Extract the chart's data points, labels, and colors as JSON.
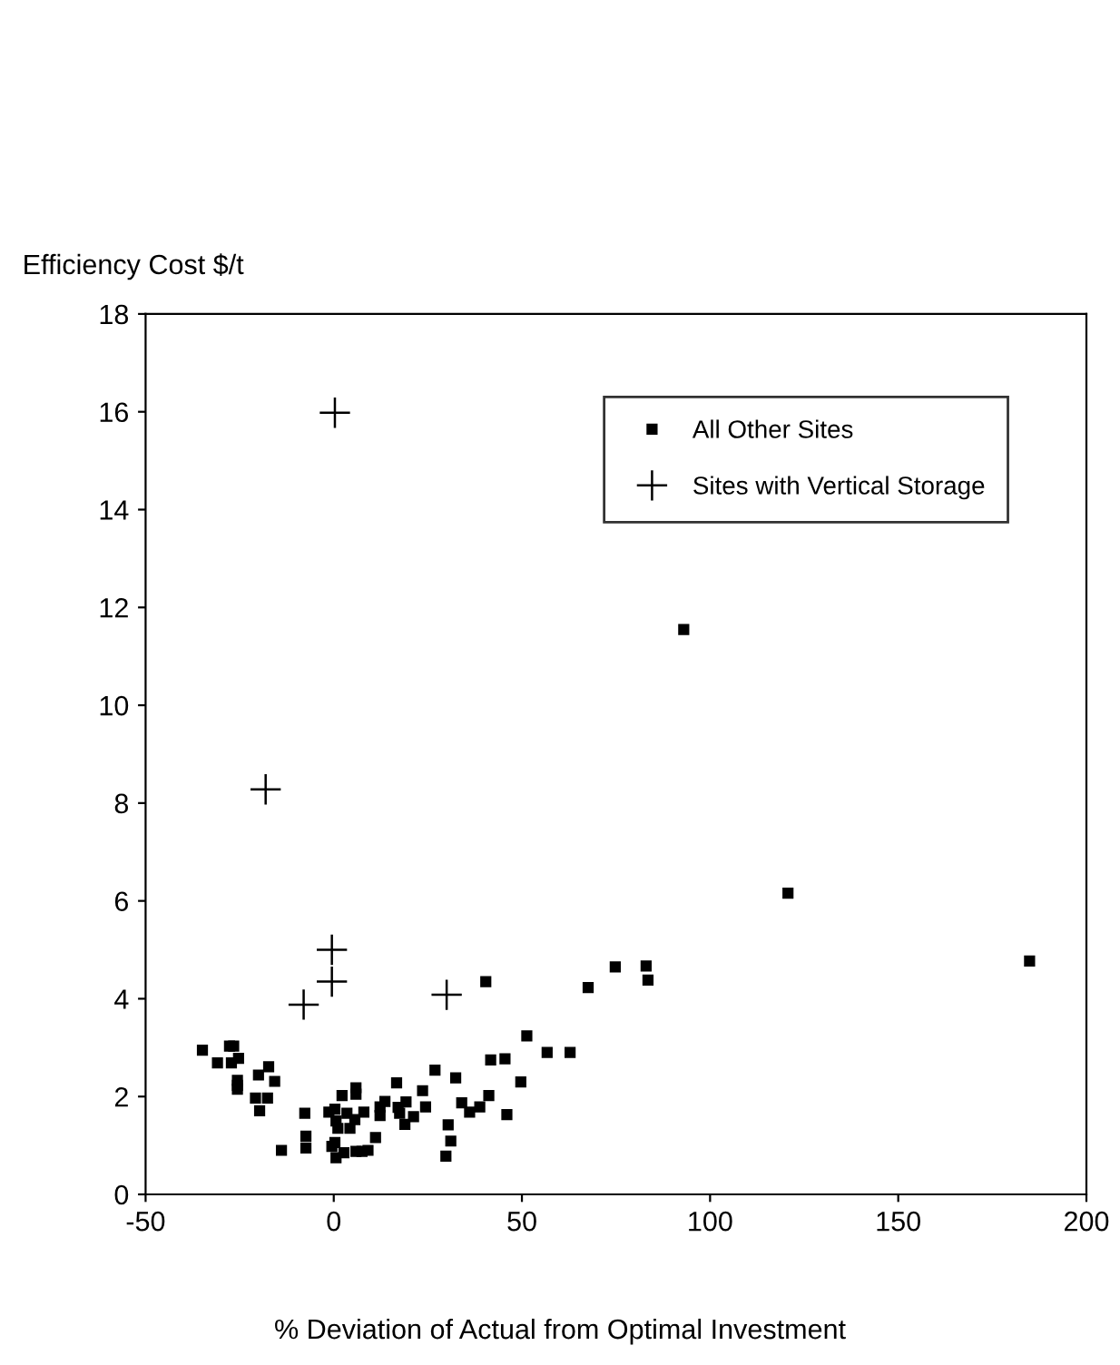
{
  "chart_data": {
    "type": "scatter",
    "xlabel": "% Deviation of Actual from Optimal Investment",
    "ylabel": "Efficiency Cost $/t",
    "xlim": [
      -50,
      200
    ],
    "xticks": [
      -50,
      0,
      50,
      100,
      150,
      200
    ],
    "ylim": [
      0,
      18
    ],
    "yticks": [
      0,
      2,
      4,
      6,
      8,
      10,
      12,
      14,
      16,
      18
    ],
    "grid": false,
    "legend": "top right",
    "series": [
      {
        "name": "All Other Sites",
        "color": "#000000",
        "marker": "square",
        "x": [
          -34.9,
          -30.9,
          -27.7,
          -26.6,
          -27.2,
          -25.3,
          -25.6,
          -25.6,
          -25.6,
          -20.0,
          -17.3,
          -15.7,
          -20.8,
          -17.6,
          -19.7,
          -13.9,
          -7.7,
          -7.4,
          -7.4,
          -1.3,
          0.3,
          0.6,
          1.1,
          2.2,
          3.5,
          4.3,
          5.9,
          5.9,
          5.6,
          8.0,
          -0.5,
          0.3,
          0.6,
          2.7,
          5.9,
          7.5,
          9.1,
          11.1,
          12.3,
          12.3,
          13.6,
          16.7,
          17.1,
          17.5,
          19.2,
          18.9,
          21.2,
          23.6,
          24.4,
          26.9,
          30.4,
          31.1,
          29.8,
          32.4,
          34.0,
          36.1,
          38.8,
          41.2,
          41.7,
          45.5,
          46.0,
          49.7,
          51.3,
          56.7,
          62.8,
          40.4,
          67.6,
          74.8,
          83.0,
          83.5,
          93,
          120.7,
          184.9
        ],
        "values": [
          2.95,
          2.69,
          3.03,
          3.03,
          2.69,
          2.78,
          2.33,
          2.23,
          2.15,
          2.44,
          2.61,
          2.31,
          1.97,
          1.97,
          1.71,
          0.9,
          1.66,
          1.19,
          0.95,
          1.68,
          1.74,
          1.5,
          1.35,
          2.02,
          1.66,
          1.35,
          2.18,
          2.05,
          1.53,
          1.68,
          0.98,
          1.06,
          0.75,
          0.85,
          0.88,
          0.88,
          0.9,
          1.16,
          1.61,
          1.79,
          1.9,
          2.28,
          1.78,
          1.66,
          1.89,
          1.43,
          1.59,
          2.12,
          1.79,
          2.54,
          1.42,
          1.09,
          0.78,
          2.38,
          1.87,
          1.68,
          1.79,
          2.02,
          2.75,
          2.77,
          1.63,
          2.3,
          3.24,
          2.9,
          2.9,
          4.35,
          4.23,
          4.65,
          4.67,
          4.38,
          11.55,
          6.16,
          4.77
        ]
      },
      {
        "name": "Sites with Vertical Storage",
        "color": "#000000",
        "marker": "cross",
        "x": [
          0.3,
          -18.1,
          -0.5,
          -0.5,
          -8.0,
          30.0
        ],
        "values": [
          15.98,
          8.28,
          5.0,
          4.35,
          3.88,
          4.08
        ]
      }
    ]
  }
}
